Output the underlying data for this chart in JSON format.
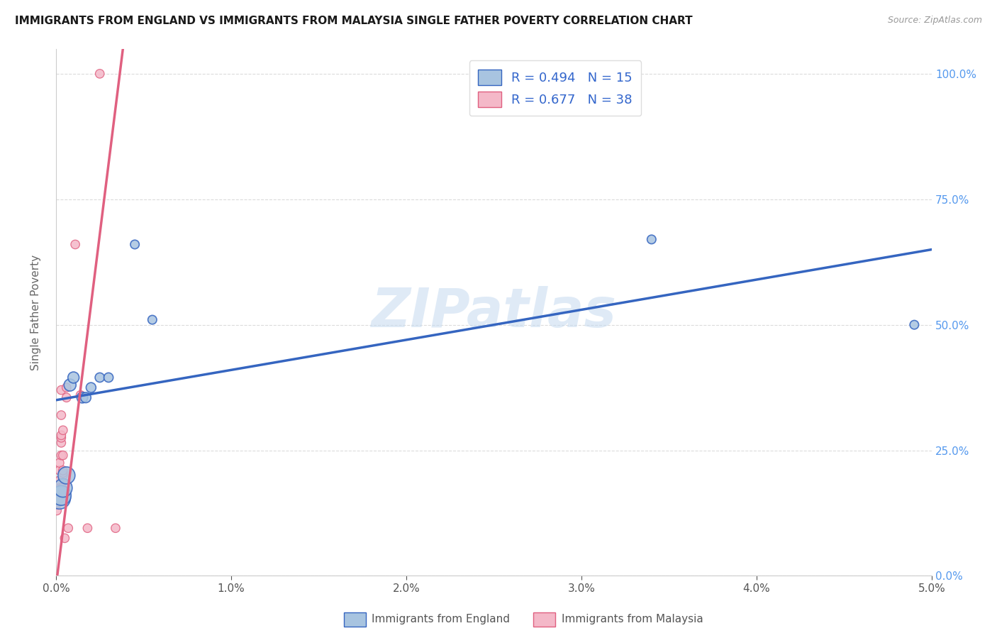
{
  "title": "IMMIGRANTS FROM ENGLAND VS IMMIGRANTS FROM MALAYSIA SINGLE FATHER POVERTY CORRELATION CHART",
  "source": "Source: ZipAtlas.com",
  "ylabel": "Single Father Poverty",
  "legend_label1": "Immigrants from England",
  "legend_label2": "Immigrants from Malaysia",
  "R1": "0.494",
  "N1": "15",
  "R2": "0.677",
  "N2": "38",
  "color_england": "#a8c4e0",
  "color_malaysia": "#f4b8c8",
  "line_color_england": "#3565c0",
  "line_color_malaysia": "#e06080",
  "watermark": "ZIPatlas",
  "england_points": [
    [
      0.0002,
      0.155
    ],
    [
      0.0003,
      0.16
    ],
    [
      0.0004,
      0.175
    ],
    [
      0.0006,
      0.2
    ],
    [
      0.0008,
      0.38
    ],
    [
      0.001,
      0.395
    ],
    [
      0.0015,
      0.355
    ],
    [
      0.0017,
      0.355
    ],
    [
      0.002,
      0.375
    ],
    [
      0.0025,
      0.395
    ],
    [
      0.003,
      0.395
    ],
    [
      0.0045,
      0.66
    ],
    [
      0.0055,
      0.51
    ],
    [
      0.034,
      0.67
    ],
    [
      0.049,
      0.5
    ]
  ],
  "malaysia_points": [
    [
      5e-05,
      0.13
    ],
    [
      5e-05,
      0.145
    ],
    [
      0.0001,
      0.145
    ],
    [
      0.0001,
      0.155
    ],
    [
      0.0001,
      0.165
    ],
    [
      0.0001,
      0.17
    ],
    [
      0.00015,
      0.155
    ],
    [
      0.00015,
      0.165
    ],
    [
      0.0002,
      0.175
    ],
    [
      0.0002,
      0.18
    ],
    [
      0.0002,
      0.19
    ],
    [
      0.0002,
      0.21
    ],
    [
      0.0002,
      0.225
    ],
    [
      0.00025,
      0.155
    ],
    [
      0.00025,
      0.165
    ],
    [
      0.00025,
      0.175
    ],
    [
      0.0003,
      0.24
    ],
    [
      0.0003,
      0.265
    ],
    [
      0.0003,
      0.275
    ],
    [
      0.0003,
      0.28
    ],
    [
      0.0003,
      0.32
    ],
    [
      0.0003,
      0.37
    ],
    [
      0.00035,
      0.165
    ],
    [
      0.00035,
      0.175
    ],
    [
      0.0004,
      0.2
    ],
    [
      0.0004,
      0.205
    ],
    [
      0.0004,
      0.21
    ],
    [
      0.0004,
      0.24
    ],
    [
      0.0004,
      0.29
    ],
    [
      0.0005,
      0.075
    ],
    [
      0.0006,
      0.355
    ],
    [
      0.0006,
      0.375
    ],
    [
      0.0007,
      0.095
    ],
    [
      0.0011,
      0.66
    ],
    [
      0.0014,
      0.36
    ],
    [
      0.0018,
      0.095
    ],
    [
      0.0025,
      1.0
    ],
    [
      0.0034,
      0.095
    ]
  ],
  "england_sizes": [
    500,
    400,
    350,
    300,
    150,
    130,
    120,
    110,
    100,
    90,
    90,
    80,
    80,
    80,
    80
  ],
  "malaysia_sizes": [
    80,
    80,
    80,
    80,
    80,
    80,
    80,
    80,
    80,
    80,
    80,
    80,
    80,
    80,
    80,
    80,
    80,
    80,
    80,
    80,
    80,
    80,
    80,
    80,
    80,
    80,
    80,
    80,
    80,
    80,
    80,
    80,
    80,
    80,
    80,
    80,
    80,
    80
  ],
  "xlim": [
    0.0,
    0.05
  ],
  "ylim": [
    0.0,
    1.05
  ],
  "eng_line": [
    0.35,
    6.0
  ],
  "mal_line": [
    -0.02,
    280.0
  ]
}
